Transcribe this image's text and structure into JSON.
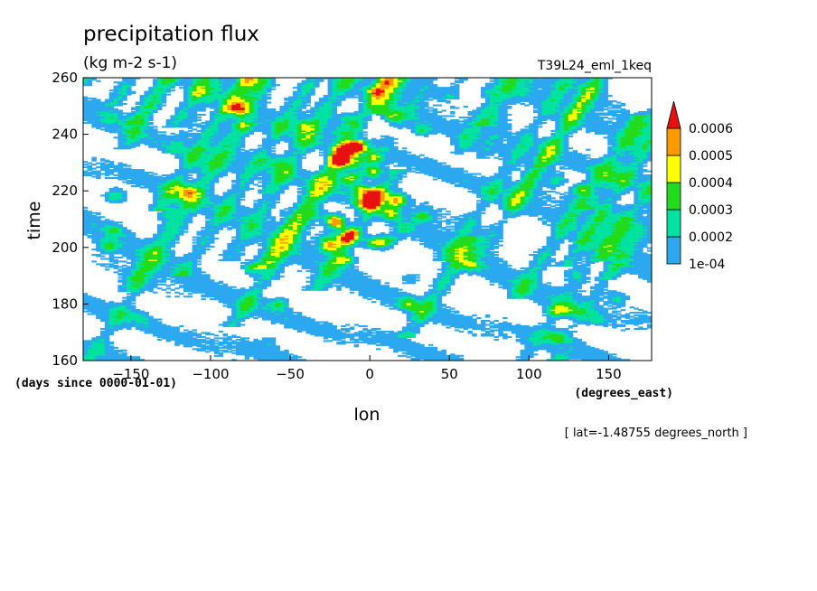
{
  "chart_data": {
    "type": "heatmap",
    "title": "precipitation flux",
    "units": "(kg m-2 s-1)",
    "experiment": "T39L24_eml_1keq",
    "xlabel": "lon",
    "ylabel": "time",
    "xunits": "(degrees_east)",
    "yunits": "(days since 0000-01-01)",
    "annotation": "[ lat=-1.48755 degrees_north ]",
    "xlim": [
      -180,
      177
    ],
    "ylim": [
      160,
      260
    ],
    "xticks": [
      -150,
      -100,
      -50,
      0,
      50,
      100,
      150
    ],
    "yticks": [
      160,
      180,
      200,
      220,
      240,
      260
    ],
    "colorbar": {
      "levels": [
        0.0001,
        0.0002,
        0.0003,
        0.0004,
        0.0005,
        0.0006
      ],
      "level_labels": [
        "1e-04",
        "0.0002",
        "0.0003",
        "0.0004",
        "0.0005",
        "0.0006"
      ],
      "colors": [
        "#2ba8f0",
        "#00e2a0",
        "#22dc1c",
        "#ffff00",
        "#ff9900",
        "#e81010"
      ],
      "extend": "max",
      "below_min_color": "#ffffff"
    },
    "features": {
      "background_rain_band_slope_deg_per_day": -4.5,
      "eastward_streak_slope_deg_per_day": 1.2,
      "max_intensity_lon_range": [
        -20,
        15
      ],
      "max_intensity_time_range": [
        200,
        245
      ]
    }
  }
}
